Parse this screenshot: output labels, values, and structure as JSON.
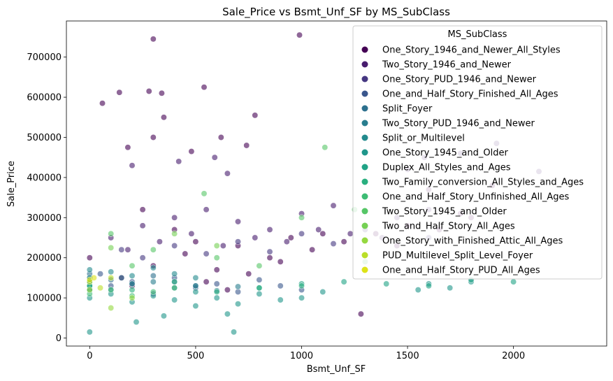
{
  "chart_data": {
    "type": "scatter",
    "title": "Sale_Price vs Bsmt_Unf_SF by MS_SubClass",
    "xlabel": "Bsmt_Unf_SF",
    "ylabel": "Sale_Price",
    "xlim": [
      -110,
      2440
    ],
    "ylim": [
      -20000,
      790000
    ],
    "xticks": [
      0,
      500,
      1000,
      1500,
      2000
    ],
    "yticks": [
      0,
      100000,
      200000,
      300000,
      400000,
      500000,
      600000,
      700000
    ],
    "xtick_labels": [
      "0",
      "500",
      "1000",
      "1500",
      "2000"
    ],
    "ytick_labels": [
      "0",
      "100000",
      "200000",
      "300000",
      "400000",
      "500000",
      "600000",
      "700000"
    ],
    "grid": false,
    "legend": {
      "title": "MS_SubClass",
      "placement": "top-right"
    },
    "series": [
      {
        "name": "One_Story_1946_and_Newer_All_Styles",
        "color": "#440154",
        "points": [
          [
            0,
            200000
          ],
          [
            150,
            150000
          ],
          [
            300,
            180000
          ],
          [
            450,
            210000
          ],
          [
            600,
            170000
          ],
          [
            750,
            160000
          ],
          [
            900,
            190000
          ],
          [
            1050,
            220000
          ],
          [
            1200,
            240000
          ],
          [
            1350,
            260000
          ],
          [
            1500,
            280000
          ],
          [
            1650,
            270000
          ],
          [
            1800,
            300000
          ],
          [
            400,
            270000
          ],
          [
            700,
            230000
          ],
          [
            950,
            250000
          ],
          [
            550,
            140000
          ],
          [
            250,
            320000
          ],
          [
            850,
            200000
          ],
          [
            1100,
            260000
          ],
          [
            1450,
            230000
          ],
          [
            1750,
            310000
          ],
          [
            500,
            240000
          ],
          [
            200,
            130000
          ],
          [
            650,
            120000
          ],
          [
            300,
            745000
          ],
          [
            990,
            755000
          ],
          [
            140,
            612000
          ],
          [
            280,
            615000
          ],
          [
            540,
            625000
          ],
          [
            60,
            585000
          ],
          [
            340,
            610000
          ],
          [
            780,
            555000
          ],
          [
            350,
            550000
          ],
          [
            300,
            500000
          ],
          [
            180,
            475000
          ],
          [
            620,
            500000
          ],
          [
            480,
            465000
          ],
          [
            740,
            480000
          ],
          [
            1600,
            370000
          ],
          [
            1900,
            380000
          ],
          [
            1280,
            60000
          ]
        ]
      },
      {
        "name": "Two_Story_1946_and_Newer",
        "color": "#481c6e",
        "points": [
          [
            100,
            250000
          ],
          [
            250,
            280000
          ],
          [
            400,
            300000
          ],
          [
            550,
            320000
          ],
          [
            700,
            290000
          ],
          [
            850,
            270000
          ],
          [
            1000,
            310000
          ],
          [
            1150,
            330000
          ],
          [
            1300,
            280000
          ],
          [
            1450,
            300000
          ],
          [
            1600,
            320000
          ],
          [
            180,
            220000
          ],
          [
            330,
            240000
          ],
          [
            480,
            260000
          ],
          [
            630,
            230000
          ],
          [
            780,
            250000
          ],
          [
            930,
            240000
          ],
          [
            1080,
            270000
          ],
          [
            1230,
            260000
          ],
          [
            1380,
            250000
          ],
          [
            200,
            430000
          ],
          [
            420,
            440000
          ],
          [
            590,
            450000
          ],
          [
            650,
            410000
          ],
          [
            1580,
            450000
          ],
          [
            1920,
            485000
          ],
          [
            1750,
            460000
          ],
          [
            1500,
            420000
          ],
          [
            2120,
            415000
          ]
        ]
      },
      {
        "name": "One_Story_PUD_1946_and_Newer",
        "color": "#453781",
        "points": [
          [
            150,
            220000
          ],
          [
            400,
            230000
          ],
          [
            700,
            240000
          ],
          [
            1000,
            260000
          ],
          [
            1300,
            270000
          ],
          [
            1600,
            250000
          ],
          [
            250,
            200000
          ],
          [
            550,
            210000
          ],
          [
            850,
            215000
          ],
          [
            1150,
            235000
          ]
        ]
      },
      {
        "name": "One_and_Half_Story_Finished_All_Ages",
        "color": "#39568c",
        "points": [
          [
            0,
            120000
          ],
          [
            100,
            130000
          ],
          [
            200,
            140000
          ],
          [
            300,
            110000
          ],
          [
            400,
            150000
          ],
          [
            500,
            125000
          ],
          [
            600,
            135000
          ],
          [
            700,
            115000
          ],
          [
            800,
            145000
          ],
          [
            900,
            130000
          ],
          [
            1000,
            120000
          ],
          [
            0,
            140000
          ],
          [
            50,
            160000
          ]
        ]
      },
      {
        "name": "Split_Foyer",
        "color": "#2d708e",
        "points": [
          [
            0,
            140000
          ],
          [
            0,
            150000
          ],
          [
            100,
            145000
          ],
          [
            200,
            135000
          ],
          [
            300,
            155000
          ],
          [
            400,
            140000
          ],
          [
            500,
            130000
          ],
          [
            0,
            160000
          ],
          [
            150,
            150000
          ]
        ]
      },
      {
        "name": "Two_Story_PUD_1946_and_Newer",
        "color": "#287d8e",
        "points": [
          [
            0,
            130000
          ],
          [
            100,
            120000
          ],
          [
            200,
            135000
          ],
          [
            300,
            140000
          ],
          [
            400,
            125000
          ],
          [
            500,
            130000
          ],
          [
            600,
            118000
          ],
          [
            700,
            128000
          ]
        ]
      },
      {
        "name": "Split_or_Multilevel",
        "color": "#238a8d",
        "points": [
          [
            0,
            150000
          ],
          [
            0,
            170000
          ],
          [
            100,
            165000
          ],
          [
            200,
            155000
          ],
          [
            300,
            175000
          ],
          [
            400,
            160000
          ],
          [
            500,
            150000
          ]
        ]
      },
      {
        "name": "One_Story_1945_and_Older",
        "color": "#1f968b",
        "points": [
          [
            0,
            100000
          ],
          [
            100,
            110000
          ],
          [
            200,
            90000
          ],
          [
            300,
            105000
          ],
          [
            400,
            95000
          ],
          [
            500,
            115000
          ],
          [
            600,
            100000
          ],
          [
            700,
            85000
          ],
          [
            800,
            110000
          ],
          [
            900,
            95000
          ],
          [
            1000,
            100000
          ],
          [
            1100,
            115000
          ],
          [
            1600,
            135000
          ],
          [
            1800,
            140000
          ],
          [
            1700,
            125000
          ],
          [
            1550,
            120000
          ],
          [
            500,
            80000
          ],
          [
            650,
            60000
          ],
          [
            350,
            55000
          ],
          [
            680,
            15000
          ],
          [
            0,
            15000
          ],
          [
            220,
            40000
          ]
        ]
      },
      {
        "name": "Duplex_All_Styles_and_Ages",
        "color": "#20a386",
        "points": [
          [
            0,
            130000
          ],
          [
            0,
            140000
          ],
          [
            0,
            120000
          ],
          [
            800,
            125000
          ],
          [
            1000,
            135000
          ],
          [
            1200,
            140000
          ],
          [
            1600,
            130000
          ],
          [
            1800,
            145000
          ],
          [
            2000,
            140000
          ],
          [
            1400,
            135000
          ]
        ]
      },
      {
        "name": "Two_Family_conversion_All_Styles_and_Ages",
        "color": "#29af7f",
        "points": [
          [
            0,
            130000
          ],
          [
            200,
            120000
          ],
          [
            400,
            140000
          ],
          [
            600,
            115000
          ],
          [
            800,
            125000
          ],
          [
            1000,
            130000
          ]
        ]
      },
      {
        "name": "One_and_Half_Story_Unfinished_All_Ages",
        "color": "#3dbc74",
        "points": [
          [
            0,
            110000
          ],
          [
            100,
            120000
          ],
          [
            200,
            105000
          ],
          [
            300,
            115000
          ],
          [
            400,
            125000
          ]
        ]
      },
      {
        "name": "Two_Story_1945_and_Older",
        "color": "#56c667",
        "points": [
          [
            100,
            260000
          ],
          [
            300,
            220000
          ],
          [
            540,
            360000
          ],
          [
            1110,
            475000
          ],
          [
            800,
            180000
          ],
          [
            600,
            200000
          ],
          [
            1000,
            300000
          ],
          [
            1250,
            320000
          ],
          [
            1300,
            190000
          ],
          [
            200,
            180000
          ]
        ]
      },
      {
        "name": "Two_and_Half_Story_All_Ages",
        "color": "#75d054",
        "points": [
          [
            100,
            225000
          ],
          [
            400,
            260000
          ],
          [
            600,
            230000
          ]
        ]
      },
      {
        "name": "One_Story_with_Finished_Attic_All_Ages",
        "color": "#95d840",
        "points": [
          [
            0,
            120000
          ],
          [
            100,
            75000
          ],
          [
            200,
            100000
          ]
        ]
      },
      {
        "name": "PUD_Multilevel_Split_Level_Foyer",
        "color": "#bade28",
        "points": [
          [
            0,
            140000
          ],
          [
            50,
            125000
          ],
          [
            100,
            150000
          ]
        ]
      },
      {
        "name": "One_and_Half_Story_PUD_All_Ages",
        "color": "#dde318",
        "points": [
          [
            0,
            145000
          ],
          [
            20,
            150000
          ]
        ]
      }
    ]
  }
}
